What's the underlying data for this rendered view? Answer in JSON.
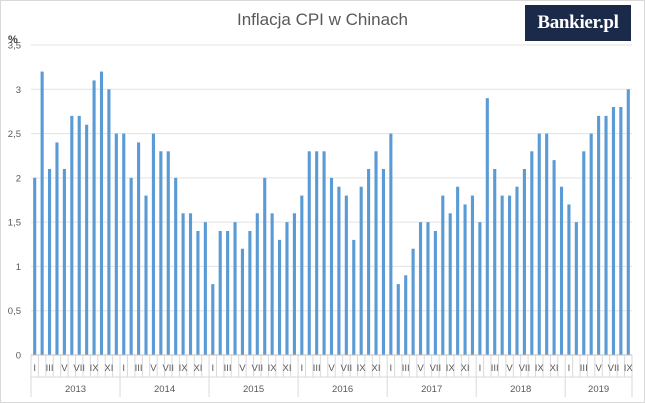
{
  "brand": {
    "logo_text": "Bankier.pl"
  },
  "chart_data": {
    "type": "bar",
    "title": "Inflacja CPI w Chinach",
    "ylabel": "%",
    "ylim": [
      0,
      3.5
    ],
    "ytick_labels": [
      "0",
      "0,5",
      "1",
      "1,5",
      "2",
      "2,5",
      "3",
      "3,5"
    ],
    "color": "#5b9bd5",
    "month_tick_labels": [
      "I",
      "III",
      "V",
      "VII",
      "IX",
      "XI"
    ],
    "years": [
      "2013",
      "2014",
      "2015",
      "2016",
      "2017",
      "2018",
      "2019"
    ],
    "series": [
      {
        "values": [
          2.0,
          3.2,
          2.1,
          2.4,
          2.1,
          2.7,
          2.7,
          2.6,
          3.1,
          3.2,
          3.0,
          2.5,
          2.5,
          2.0,
          2.4,
          1.8,
          2.5,
          2.3,
          2.3,
          2.0,
          1.6,
          1.6,
          1.4,
          1.5,
          0.8,
          1.4,
          1.4,
          1.5,
          1.2,
          1.4,
          1.6,
          2.0,
          1.6,
          1.3,
          1.5,
          1.6,
          1.8,
          2.3,
          2.3,
          2.3,
          2.0,
          1.9,
          1.8,
          1.3,
          1.9,
          2.1,
          2.3,
          2.1,
          2.5,
          0.8,
          0.9,
          1.2,
          1.5,
          1.5,
          1.4,
          1.8,
          1.6,
          1.9,
          1.7,
          1.8,
          1.5,
          2.9,
          2.1,
          1.8,
          1.8,
          1.9,
          2.1,
          2.3,
          2.5,
          2.5,
          2.2,
          1.9,
          1.7,
          1.5,
          2.3,
          2.5,
          2.7,
          2.7,
          2.8,
          2.8,
          3.0
        ]
      }
    ]
  }
}
